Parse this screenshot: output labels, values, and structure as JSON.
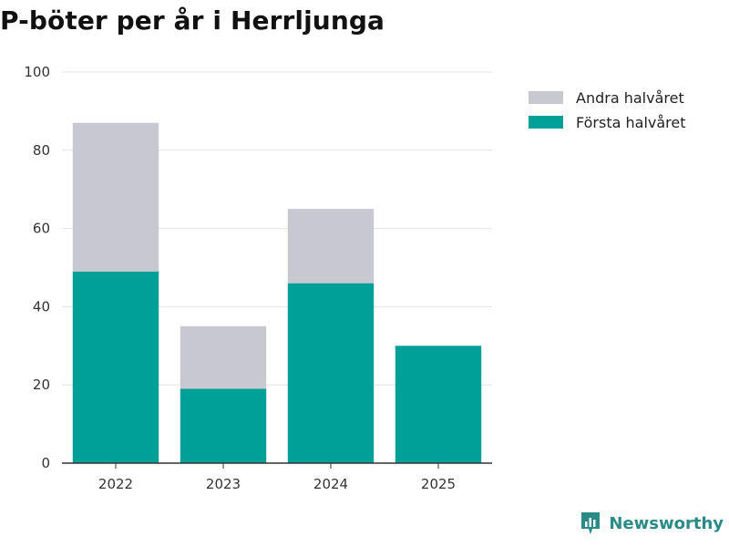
{
  "chart_data": {
    "type": "bar",
    "stacked": true,
    "title": "P-böter per år i Herrljunga",
    "categories": [
      "2022",
      "2023",
      "2024",
      "2025"
    ],
    "series": [
      {
        "name": "Första halvåret",
        "color": "#00a098",
        "values": [
          49,
          19,
          46,
          30
        ]
      },
      {
        "name": "Andra halvåret",
        "color": "#c8c8d0",
        "values": [
          38,
          16,
          19,
          0
        ]
      }
    ],
    "ylim": [
      0,
      100
    ],
    "yticks": [
      0,
      20,
      40,
      60,
      80,
      100
    ],
    "grid": true,
    "legend_position": "top-right",
    "xlabel": "",
    "ylabel": ""
  },
  "brand": {
    "name": "Newsworthy",
    "icon": "newsworthy-logo-icon",
    "color": "#2a8a86"
  }
}
